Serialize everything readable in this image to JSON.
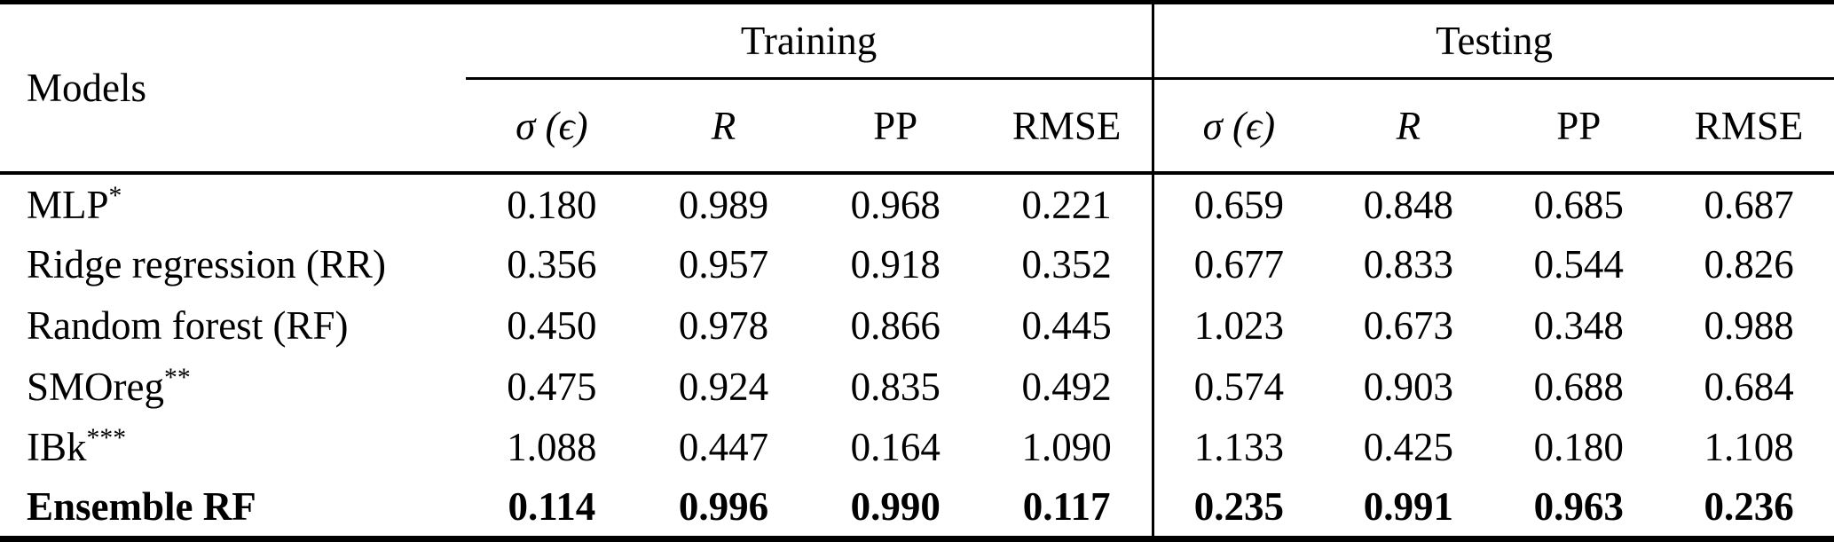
{
  "colors": {
    "background": "#ffffff",
    "text": "#000000",
    "rule": "#000000"
  },
  "table": {
    "header": {
      "models_label": "Models",
      "groups": [
        {
          "label": "Training"
        },
        {
          "label": "Testing"
        }
      ],
      "subheaders": [
        "σ (ϵ)",
        "R",
        "PP",
        "RMSE",
        "σ (ϵ)",
        "R",
        "PP",
        "RMSE"
      ]
    },
    "rows": [
      {
        "model": "MLP",
        "sup": "*",
        "values": [
          "0.180",
          "0.989",
          "0.968",
          "0.221",
          "0.659",
          "0.848",
          "0.685",
          "0.687"
        ]
      },
      {
        "model": "Ridge regression (RR)",
        "sup": "",
        "values": [
          "0.356",
          "0.957",
          "0.918",
          "0.352",
          "0.677",
          "0.833",
          "0.544",
          "0.826"
        ]
      },
      {
        "model": "Random forest (RF)",
        "sup": "",
        "values": [
          "0.450",
          "0.978",
          "0.866",
          "0.445",
          "1.023",
          "0.673",
          "0.348",
          "0.988"
        ]
      },
      {
        "model": "SMOreg",
        "sup": "**",
        "values": [
          "0.475",
          "0.924",
          "0.835",
          "0.492",
          "0.574",
          "0.903",
          "0.688",
          "0.684"
        ]
      },
      {
        "model": "IBk",
        "sup": "***",
        "values": [
          "1.088",
          "0.447",
          "0.164",
          "1.090",
          "1.133",
          "0.425",
          "0.180",
          "1.108"
        ]
      },
      {
        "model": "Ensemble RF",
        "sup": "",
        "values": [
          "0.114",
          "0.996",
          "0.990",
          "0.117",
          "0.235",
          "0.991",
          "0.963",
          "0.236"
        ]
      }
    ]
  }
}
